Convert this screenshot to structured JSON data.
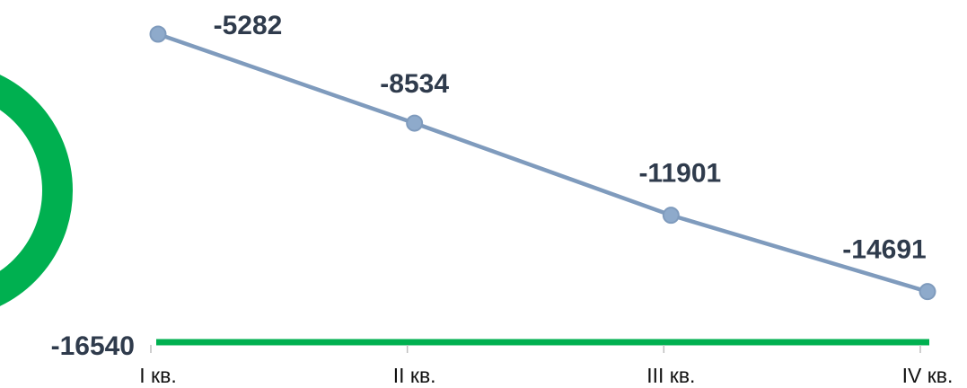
{
  "chart_data": {
    "type": "line",
    "categories": [
      "I кв.",
      "II кв.",
      "III кв.",
      "IV кв."
    ],
    "series": [
      {
        "color": "#7f9bbd",
        "values": [
          -5282,
          -8534,
          -11901,
          -14691
        ]
      }
    ],
    "reference": {
      "value": -16540,
      "color": "#00b050"
    }
  }
}
